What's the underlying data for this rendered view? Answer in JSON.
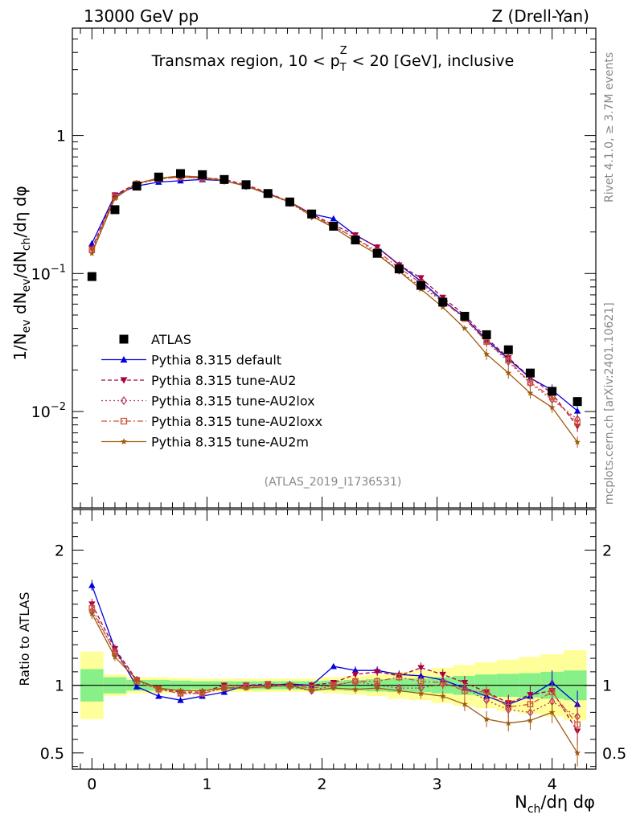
{
  "header": {
    "left": "13000 GeV pp",
    "right": "Z (Drell-Yan)"
  },
  "side": {
    "rivet": "Rivet 4.1.0, ≥ 3.7M events",
    "source": "mcplots.cern.ch [arXiv:2401.10621]"
  },
  "chart_data": [
    {
      "type": "scatter",
      "panel": "main",
      "title": "Transmax region, 10 < p_T^Z < 20 [GeV], inclusive",
      "title_parts": {
        "pre": "Transmax region, 10 < p",
        "sub": "T",
        "sup": "Z",
        "post": " < 20 [GeV], inclusive"
      },
      "ylabel": "1/N_ev dN_ev/dN_ch/dη dφ",
      "ylabel_parts": [
        "1/N",
        "ev",
        " dN",
        "ev",
        "/dN",
        "ch",
        "/dη dφ"
      ],
      "yscale": "log",
      "ylim": [
        0.002,
        6
      ],
      "xlim": [
        -0.17,
        4.38
      ],
      "x_ticklabels": [
        "0",
        "1",
        "2",
        "3",
        "4"
      ],
      "y_ticklabels": [
        "1",
        "10^-1",
        "10^-2"
      ],
      "y_ticklabel_parts": [
        [
          "1",
          ""
        ],
        [
          "10",
          "−1"
        ],
        [
          "10",
          "−2"
        ]
      ],
      "watermark": "(ATLAS_2019_I1736531)",
      "legend_position": "lower-left",
      "x": [
        0.0,
        0.2,
        0.39,
        0.58,
        0.77,
        0.96,
        1.15,
        1.34,
        1.53,
        1.72,
        1.91,
        2.1,
        2.29,
        2.48,
        2.67,
        2.86,
        3.05,
        3.24,
        3.43,
        3.62,
        3.81,
        4.0,
        4.22
      ],
      "series": [
        {
          "name": "ATLAS",
          "color": "#000000",
          "marker": "square",
          "values": [
            0.095,
            0.29,
            0.43,
            0.5,
            0.53,
            0.52,
            0.48,
            0.44,
            0.38,
            0.33,
            0.27,
            0.22,
            0.175,
            0.14,
            0.108,
            0.082,
            0.062,
            0.049,
            0.036,
            0.028,
            0.019,
            0.014,
            0.0118
          ]
        },
        {
          "name": "Pythia 8.315 default",
          "color": "#0000dd",
          "marker": "triangle-up",
          "linestyle": "solid",
          "values": [
            0.165,
            0.37,
            0.43,
            0.46,
            0.47,
            0.48,
            0.47,
            0.43,
            0.38,
            0.33,
            0.27,
            0.25,
            0.19,
            0.155,
            0.116,
            0.088,
            0.064,
            0.048,
            0.033,
            0.024,
            0.0175,
            0.0143,
            0.0101
          ]
        },
        {
          "name": "Pythia 8.315 tune-AU2",
          "color": "#aa0044",
          "marker": "triangle-down",
          "linestyle": "dashed",
          "values": [
            0.152,
            0.37,
            0.45,
            0.49,
            0.5,
            0.495,
            0.48,
            0.44,
            0.385,
            0.33,
            0.27,
            0.225,
            0.19,
            0.155,
            0.115,
            0.093,
            0.067,
            0.05,
            0.034,
            0.0245,
            0.0177,
            0.0135,
            0.0078
          ]
        },
        {
          "name": "Pythia 8.315 tune-AU2lox",
          "color": "#bb3355",
          "marker": "diamond-open",
          "linestyle": "dotted",
          "values": [
            0.145,
            0.36,
            0.445,
            0.485,
            0.5,
            0.49,
            0.47,
            0.43,
            0.38,
            0.325,
            0.26,
            0.22,
            0.18,
            0.14,
            0.105,
            0.08,
            0.063,
            0.048,
            0.032,
            0.023,
            0.016,
            0.0122,
            0.0088
          ]
        },
        {
          "name": "Pythia 8.315 tune-AU2loxx",
          "color": "#cc5533",
          "marker": "square-open",
          "linestyle": "dashdot",
          "values": [
            0.148,
            0.36,
            0.445,
            0.485,
            0.5,
            0.49,
            0.47,
            0.435,
            0.38,
            0.33,
            0.265,
            0.22,
            0.18,
            0.145,
            0.11,
            0.085,
            0.063,
            0.047,
            0.032,
            0.0235,
            0.0162,
            0.0127,
            0.0083
          ]
        },
        {
          "name": "Pythia 8.315 tune-AU2m",
          "color": "#a05a10",
          "marker": "star",
          "linestyle": "solid",
          "values": [
            0.14,
            0.35,
            0.45,
            0.49,
            0.51,
            0.5,
            0.47,
            0.43,
            0.375,
            0.33,
            0.26,
            0.215,
            0.17,
            0.138,
            0.104,
            0.077,
            0.057,
            0.04,
            0.026,
            0.019,
            0.0136,
            0.0107,
            0.006
          ]
        }
      ]
    },
    {
      "type": "scatter",
      "panel": "ratio",
      "ylabel": "Ratio to ATLAS",
      "xlabel": "N_ch/dη dφ",
      "xlabel_parts": [
        "N",
        "ch",
        "/dη dφ"
      ],
      "ylim": [
        0.38,
        2.3
      ],
      "xlim": [
        -0.17,
        4.38
      ],
      "x_ticklabels": [
        "0",
        "1",
        "2",
        "3",
        "4"
      ],
      "y_ticklabels": [
        "0.5",
        "1",
        "2"
      ],
      "y_tick_values": [
        0.5,
        1,
        2
      ],
      "x": [
        0.0,
        0.2,
        0.39,
        0.58,
        0.77,
        0.96,
        1.15,
        1.34,
        1.53,
        1.72,
        1.91,
        2.1,
        2.29,
        2.48,
        2.67,
        2.86,
        3.05,
        3.24,
        3.43,
        3.62,
        3.81,
        4.0,
        4.22
      ],
      "x_edges": [
        -0.1,
        0.1,
        0.3,
        0.48,
        0.68,
        0.86,
        1.05,
        1.24,
        1.44,
        1.62,
        1.81,
        2.0,
        2.19,
        2.38,
        2.57,
        2.76,
        2.95,
        3.14,
        3.33,
        3.52,
        3.71,
        3.9,
        4.1,
        4.3
      ],
      "band_inner_halfwidth": [
        0.12,
        0.06,
        0.04,
        0.04,
        0.035,
        0.03,
        0.03,
        0.03,
        0.03,
        0.03,
        0.03,
        0.035,
        0.04,
        0.045,
        0.05,
        0.05,
        0.06,
        0.07,
        0.08,
        0.085,
        0.09,
        0.1,
        0.11
      ],
      "band_outer_halfwidth": [
        0.25,
        0.08,
        0.06,
        0.06,
        0.055,
        0.05,
        0.05,
        0.05,
        0.05,
        0.05,
        0.05,
        0.06,
        0.07,
        0.08,
        0.1,
        0.11,
        0.13,
        0.15,
        0.17,
        0.19,
        0.21,
        0.23,
        0.26
      ],
      "colors": {
        "band_inner": "#88f088",
        "band_outer": "#ffff99"
      },
      "series": [
        {
          "name": "Pythia 8.315 default",
          "color": "#0000dd",
          "marker": "triangle-up",
          "values": [
            1.74,
            1.27,
            0.99,
            0.92,
            0.89,
            0.92,
            0.95,
            1.0,
            1.0,
            1.01,
            1.0,
            1.14,
            1.11,
            1.11,
            1.08,
            1.07,
            1.04,
            0.98,
            0.92,
            0.86,
            0.92,
            1.02,
            0.86
          ],
          "errors": [
            0.04,
            0.03,
            0.02,
            0.02,
            0.02,
            0.02,
            0.02,
            0.02,
            0.02,
            0.02,
            0.02,
            0.02,
            0.03,
            0.03,
            0.03,
            0.04,
            0.04,
            0.05,
            0.06,
            0.06,
            0.07,
            0.09,
            0.1
          ]
        },
        {
          "name": "Pythia 8.315 tune-AU2",
          "color": "#aa0044",
          "marker": "triangle-down",
          "values": [
            1.6,
            1.27,
            1.04,
            0.98,
            0.95,
            0.95,
            1.0,
            1.0,
            1.01,
            1.0,
            1.0,
            1.02,
            1.08,
            1.1,
            1.07,
            1.13,
            1.08,
            1.02,
            0.95,
            0.87,
            0.93,
            0.96,
            0.66
          ],
          "errors": [
            0.04,
            0.03,
            0.02,
            0.02,
            0.02,
            0.02,
            0.02,
            0.02,
            0.02,
            0.02,
            0.02,
            0.02,
            0.03,
            0.03,
            0.03,
            0.04,
            0.04,
            0.05,
            0.06,
            0.06,
            0.07,
            0.08,
            0.1
          ]
        },
        {
          "name": "Pythia 8.315 tune-AU2lox",
          "color": "#bb3355",
          "marker": "diamond-open",
          "values": [
            1.55,
            1.25,
            1.04,
            0.97,
            0.94,
            0.94,
            0.98,
            0.99,
            1.0,
            0.99,
            0.96,
            1.0,
            1.03,
            1.0,
            0.98,
            0.98,
            1.01,
            0.98,
            0.89,
            0.82,
            0.8,
            0.88,
            0.77
          ],
          "errors": [
            0.04,
            0.03,
            0.02,
            0.02,
            0.02,
            0.02,
            0.02,
            0.02,
            0.02,
            0.02,
            0.02,
            0.02,
            0.03,
            0.03,
            0.03,
            0.04,
            0.04,
            0.05,
            0.06,
            0.06,
            0.07,
            0.08,
            0.1
          ]
        },
        {
          "name": "Pythia 8.315 tune-AU2loxx",
          "color": "#cc5533",
          "marker": "square-open",
          "values": [
            1.57,
            1.24,
            1.03,
            0.97,
            0.94,
            0.94,
            0.98,
            0.99,
            1.0,
            1.0,
            0.98,
            1.0,
            1.03,
            1.03,
            1.06,
            1.03,
            1.02,
            0.96,
            0.95,
            0.84,
            0.86,
            0.95,
            0.71
          ],
          "errors": [
            0.04,
            0.03,
            0.02,
            0.02,
            0.02,
            0.02,
            0.02,
            0.02,
            0.02,
            0.02,
            0.02,
            0.02,
            0.03,
            0.03,
            0.03,
            0.04,
            0.04,
            0.05,
            0.06,
            0.06,
            0.07,
            0.08,
            0.1
          ]
        },
        {
          "name": "Pythia 8.315 tune-AU2m",
          "color": "#a05a10",
          "marker": "star",
          "values": [
            1.53,
            1.21,
            1.04,
            0.98,
            0.96,
            0.96,
            0.98,
            0.98,
            0.99,
            1.0,
            0.96,
            0.98,
            0.97,
            0.98,
            0.96,
            0.94,
            0.92,
            0.86,
            0.75,
            0.72,
            0.74,
            0.8,
            0.5
          ],
          "errors": [
            0.04,
            0.03,
            0.02,
            0.02,
            0.02,
            0.02,
            0.02,
            0.02,
            0.02,
            0.02,
            0.02,
            0.02,
            0.03,
            0.03,
            0.03,
            0.04,
            0.04,
            0.05,
            0.06,
            0.06,
            0.07,
            0.08,
            0.1
          ]
        }
      ]
    }
  ]
}
